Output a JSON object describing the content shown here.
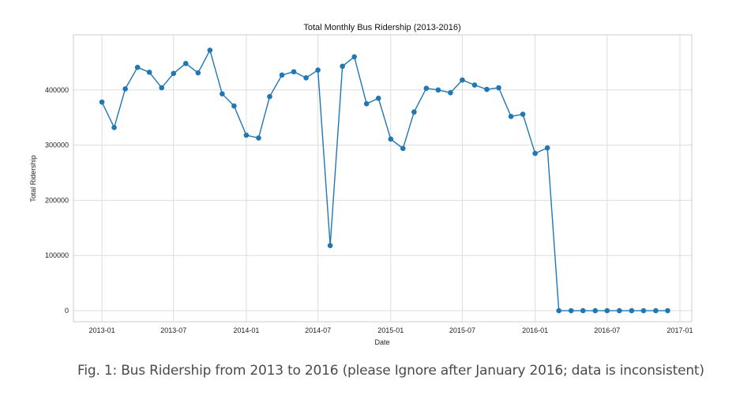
{
  "chart_data": {
    "type": "line",
    "title": "Total Monthly Bus Ridership (2013-2016)",
    "xlabel": "Date",
    "ylabel": "Total Ridership",
    "grid": true,
    "legend": "none",
    "x_ticks": [
      "2013-01",
      "2013-07",
      "2014-01",
      "2014-07",
      "2015-01",
      "2015-07",
      "2016-01",
      "2016-07",
      "2017-01"
    ],
    "y_ticks": [
      "0",
      "100000",
      "200000",
      "300000",
      "400000"
    ],
    "ylim": [
      -20000,
      500000
    ],
    "xlim": [
      "2012-10-21",
      "2017-01-31"
    ],
    "series": [
      {
        "color": "#1f77b4",
        "x": [
          "2013-01-01",
          "2013-02-01",
          "2013-03-01",
          "2013-04-01",
          "2013-05-01",
          "2013-06-01",
          "2013-07-01",
          "2013-08-01",
          "2013-09-01",
          "2013-10-01",
          "2013-11-01",
          "2013-12-01",
          "2014-01-01",
          "2014-02-01",
          "2014-03-01",
          "2014-04-01",
          "2014-05-01",
          "2014-06-01",
          "2014-07-01",
          "2014-08-01",
          "2014-09-01",
          "2014-10-01",
          "2014-11-01",
          "2014-12-01",
          "2015-01-01",
          "2015-02-01",
          "2015-03-01",
          "2015-04-01",
          "2015-05-01",
          "2015-06-01",
          "2015-07-01",
          "2015-08-01",
          "2015-09-01",
          "2015-10-01",
          "2015-11-01",
          "2015-12-01",
          "2016-01-01",
          "2016-02-01",
          "2016-03-01",
          "2016-04-01",
          "2016-05-01",
          "2016-06-01",
          "2016-07-01",
          "2016-08-01",
          "2016-09-01",
          "2016-10-01",
          "2016-11-01",
          "2016-12-01"
        ],
        "values": [
          378000,
          332000,
          402000,
          441000,
          432000,
          404000,
          430000,
          448000,
          431000,
          472000,
          393000,
          371000,
          318000,
          313000,
          388000,
          427000,
          433000,
          422000,
          436000,
          118000,
          443000,
          460000,
          375000,
          385000,
          311000,
          294000,
          360000,
          403000,
          400000,
          395000,
          418000,
          409000,
          401000,
          404000,
          352000,
          356000,
          285000,
          295000,
          0,
          0,
          0,
          0,
          0,
          0,
          0,
          0,
          0,
          0
        ]
      }
    ]
  },
  "caption": "Fig. 1: Bus Ridership from 2013 to 2016 (please Ignore after January 2016; data is inconsistent)"
}
